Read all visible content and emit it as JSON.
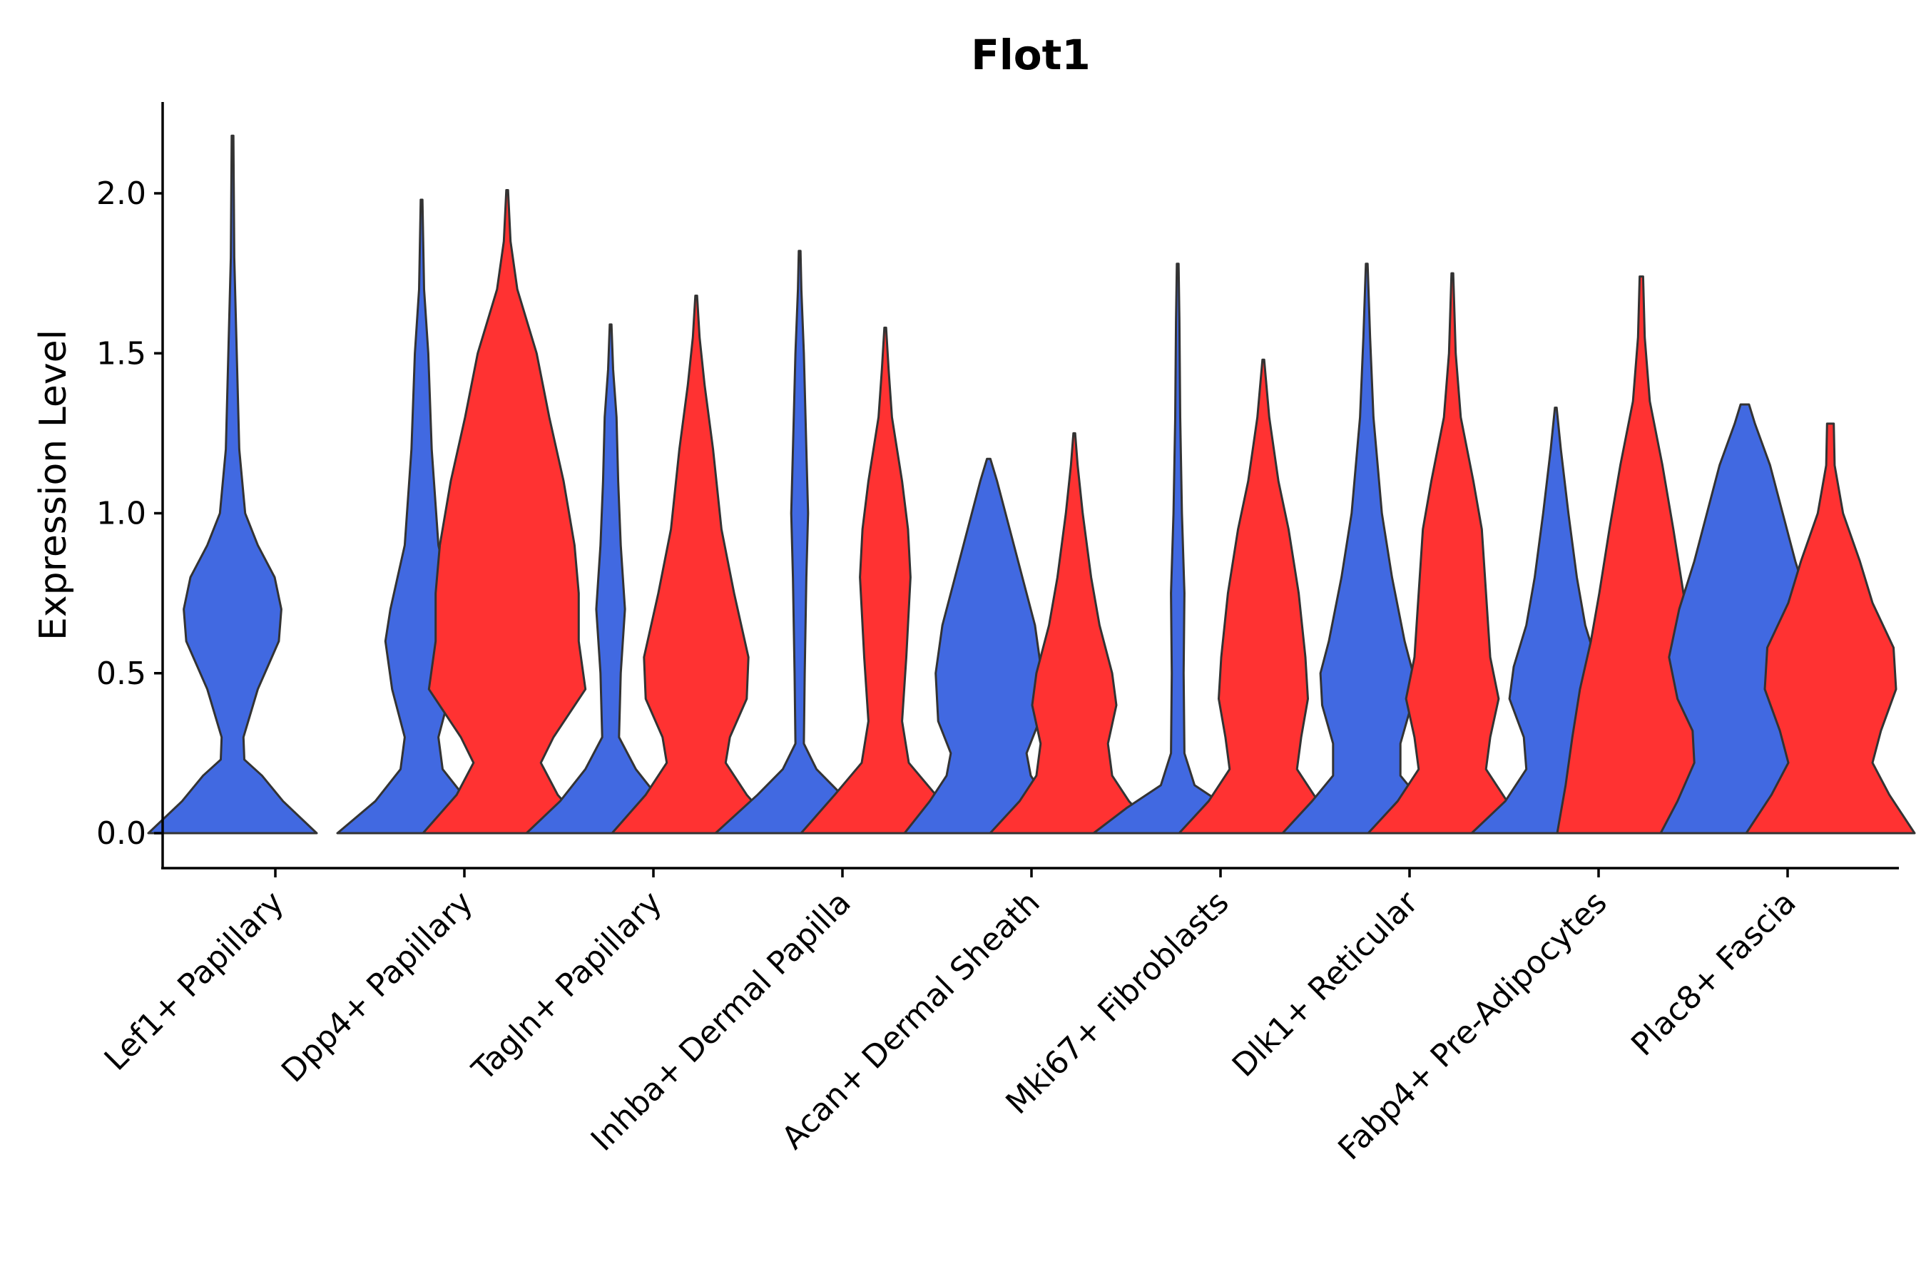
{
  "chart_data": {
    "type": "violin",
    "title": "Flot1",
    "xlabel": "",
    "ylabel": "Expression Level",
    "ylim": [
      -0.11,
      2.3
    ],
    "yticks": [
      0.0,
      0.5,
      1.0,
      1.5,
      2.0
    ],
    "ytick_labels": [
      "0.0",
      "0.5",
      "1.0",
      "1.5",
      "2.0"
    ],
    "grid": false,
    "legend": "none",
    "colors": {
      "group1": "#4169E1",
      "group2": "#FF3232",
      "outline": "#333333"
    },
    "categories": [
      "Lef1+ Papillary",
      "Dpp4+ Papillary",
      "Tagln+ Papillary",
      "Inhba+ Dermal Papilla",
      "Acan+ Dermal Sheath",
      "Mki67+ Fibroblasts",
      "Dlk1+ Reticular",
      "Fabp4+ Pre-Adipocytes",
      "Plac8+ Fascia"
    ],
    "violins": [
      {
        "category_index": 0,
        "group": "group1",
        "max": 2.18,
        "profile": [
          [
            0,
            1
          ],
          [
            0.1,
            0.6
          ],
          [
            0.18,
            0.35
          ],
          [
            0.23,
            0.14
          ],
          [
            0.3,
            0.13
          ],
          [
            0.45,
            0.3
          ],
          [
            0.6,
            0.55
          ],
          [
            0.7,
            0.58
          ],
          [
            0.8,
            0.5
          ],
          [
            0.9,
            0.3
          ],
          [
            1.0,
            0.15
          ],
          [
            1.2,
            0.08
          ],
          [
            1.5,
            0.05
          ],
          [
            1.8,
            0.02
          ],
          [
            2.18,
            0.01
          ]
        ]
      },
      {
        "category_index": 1,
        "group": "group1",
        "max": 1.98,
        "profile": [
          [
            0,
            1
          ],
          [
            0.1,
            0.55
          ],
          [
            0.2,
            0.25
          ],
          [
            0.3,
            0.2
          ],
          [
            0.45,
            0.35
          ],
          [
            0.6,
            0.43
          ],
          [
            0.7,
            0.37
          ],
          [
            0.9,
            0.2
          ],
          [
            1.2,
            0.12
          ],
          [
            1.5,
            0.08
          ],
          [
            1.7,
            0.03
          ],
          [
            1.98,
            0.01
          ]
        ]
      },
      {
        "category_index": 1,
        "group": "group2",
        "max": 2.01,
        "profile": [
          [
            0,
            1
          ],
          [
            0.12,
            0.6
          ],
          [
            0.22,
            0.4
          ],
          [
            0.3,
            0.55
          ],
          [
            0.45,
            0.93
          ],
          [
            0.6,
            0.85
          ],
          [
            0.75,
            0.85
          ],
          [
            0.9,
            0.8
          ],
          [
            1.1,
            0.67
          ],
          [
            1.3,
            0.5
          ],
          [
            1.5,
            0.35
          ],
          [
            1.7,
            0.12
          ],
          [
            1.85,
            0.04
          ],
          [
            2.01,
            0.01
          ]
        ]
      },
      {
        "category_index": 2,
        "group": "group1",
        "max": 1.59,
        "profile": [
          [
            0,
            1
          ],
          [
            0.1,
            0.6
          ],
          [
            0.2,
            0.3
          ],
          [
            0.3,
            0.1
          ],
          [
            0.5,
            0.12
          ],
          [
            0.7,
            0.17
          ],
          [
            0.9,
            0.12
          ],
          [
            1.1,
            0.09
          ],
          [
            1.3,
            0.07
          ],
          [
            1.45,
            0.03
          ],
          [
            1.59,
            0.01
          ]
        ]
      },
      {
        "category_index": 2,
        "group": "group2",
        "max": 1.68,
        "profile": [
          [
            0,
            1
          ],
          [
            0.12,
            0.6
          ],
          [
            0.22,
            0.35
          ],
          [
            0.3,
            0.4
          ],
          [
            0.42,
            0.6
          ],
          [
            0.55,
            0.62
          ],
          [
            0.75,
            0.45
          ],
          [
            0.95,
            0.3
          ],
          [
            1.2,
            0.2
          ],
          [
            1.4,
            0.1
          ],
          [
            1.55,
            0.04
          ],
          [
            1.68,
            0.01
          ]
        ]
      },
      {
        "category_index": 3,
        "group": "group1",
        "max": 1.82,
        "profile": [
          [
            0,
            1
          ],
          [
            0.12,
            0.5
          ],
          [
            0.2,
            0.2
          ],
          [
            0.28,
            0.05
          ],
          [
            0.5,
            0.06
          ],
          [
            0.8,
            0.08
          ],
          [
            1.0,
            0.1
          ],
          [
            1.2,
            0.08
          ],
          [
            1.5,
            0.05
          ],
          [
            1.7,
            0.02
          ],
          [
            1.82,
            0.01
          ]
        ]
      },
      {
        "category_index": 3,
        "group": "group2",
        "max": 1.58,
        "profile": [
          [
            0,
            1
          ],
          [
            0.12,
            0.6
          ],
          [
            0.22,
            0.28
          ],
          [
            0.35,
            0.2
          ],
          [
            0.55,
            0.25
          ],
          [
            0.8,
            0.3
          ],
          [
            0.95,
            0.27
          ],
          [
            1.1,
            0.2
          ],
          [
            1.3,
            0.08
          ],
          [
            1.45,
            0.04
          ],
          [
            1.58,
            0.01
          ]
        ]
      },
      {
        "category_index": 4,
        "group": "group1",
        "max": 1.17,
        "profile": [
          [
            0,
            1
          ],
          [
            0.1,
            0.7
          ],
          [
            0.18,
            0.5
          ],
          [
            0.25,
            0.45
          ],
          [
            0.35,
            0.6
          ],
          [
            0.5,
            0.63
          ],
          [
            0.65,
            0.55
          ],
          [
            0.8,
            0.4
          ],
          [
            0.95,
            0.25
          ],
          [
            1.1,
            0.1
          ],
          [
            1.17,
            0.02
          ]
        ]
      },
      {
        "category_index": 4,
        "group": "group2",
        "max": 1.25,
        "profile": [
          [
            0,
            1
          ],
          [
            0.1,
            0.65
          ],
          [
            0.18,
            0.45
          ],
          [
            0.28,
            0.4
          ],
          [
            0.4,
            0.5
          ],
          [
            0.5,
            0.45
          ],
          [
            0.65,
            0.3
          ],
          [
            0.8,
            0.2
          ],
          [
            1.0,
            0.1
          ],
          [
            1.15,
            0.04
          ],
          [
            1.25,
            0.01
          ]
        ]
      },
      {
        "category_index": 5,
        "group": "group1",
        "max": 1.78,
        "profile": [
          [
            0,
            1
          ],
          [
            0.08,
            0.6
          ],
          [
            0.15,
            0.2
          ],
          [
            0.25,
            0.08
          ],
          [
            0.5,
            0.07
          ],
          [
            0.75,
            0.08
          ],
          [
            1.0,
            0.05
          ],
          [
            1.3,
            0.03
          ],
          [
            1.6,
            0.02
          ],
          [
            1.78,
            0.01
          ]
        ]
      },
      {
        "category_index": 5,
        "group": "group2",
        "max": 1.48,
        "profile": [
          [
            0,
            1
          ],
          [
            0.1,
            0.65
          ],
          [
            0.2,
            0.4
          ],
          [
            0.3,
            0.45
          ],
          [
            0.42,
            0.53
          ],
          [
            0.55,
            0.5
          ],
          [
            0.75,
            0.42
          ],
          [
            0.95,
            0.3
          ],
          [
            1.1,
            0.18
          ],
          [
            1.3,
            0.07
          ],
          [
            1.48,
            0.01
          ]
        ]
      },
      {
        "category_index": 6,
        "group": "group1",
        "max": 1.78,
        "profile": [
          [
            0,
            1
          ],
          [
            0.1,
            0.65
          ],
          [
            0.18,
            0.4
          ],
          [
            0.28,
            0.4
          ],
          [
            0.4,
            0.53
          ],
          [
            0.5,
            0.55
          ],
          [
            0.6,
            0.45
          ],
          [
            0.8,
            0.3
          ],
          [
            1.0,
            0.18
          ],
          [
            1.3,
            0.08
          ],
          [
            1.55,
            0.04
          ],
          [
            1.78,
            0.01
          ]
        ]
      },
      {
        "category_index": 6,
        "group": "group2",
        "max": 1.75,
        "profile": [
          [
            0,
            1
          ],
          [
            0.1,
            0.65
          ],
          [
            0.2,
            0.4
          ],
          [
            0.3,
            0.45
          ],
          [
            0.42,
            0.55
          ],
          [
            0.55,
            0.45
          ],
          [
            0.75,
            0.4
          ],
          [
            0.95,
            0.35
          ],
          [
            1.1,
            0.25
          ],
          [
            1.3,
            0.1
          ],
          [
            1.5,
            0.04
          ],
          [
            1.75,
            0.01
          ]
        ]
      },
      {
        "category_index": 7,
        "group": "group1",
        "max": 1.33,
        "profile": [
          [
            0,
            1
          ],
          [
            0.1,
            0.6
          ],
          [
            0.2,
            0.35
          ],
          [
            0.3,
            0.38
          ],
          [
            0.42,
            0.55
          ],
          [
            0.52,
            0.5
          ],
          [
            0.65,
            0.35
          ],
          [
            0.8,
            0.25
          ],
          [
            1.0,
            0.15
          ],
          [
            1.2,
            0.06
          ],
          [
            1.33,
            0.01
          ]
        ]
      },
      {
        "category_index": 7,
        "group": "group2",
        "max": 1.74,
        "profile": [
          [
            0,
            1
          ],
          [
            0.15,
            0.9
          ],
          [
            0.3,
            0.82
          ],
          [
            0.45,
            0.73
          ],
          [
            0.6,
            0.6
          ],
          [
            0.75,
            0.5
          ],
          [
            0.95,
            0.38
          ],
          [
            1.15,
            0.25
          ],
          [
            1.35,
            0.1
          ],
          [
            1.55,
            0.04
          ],
          [
            1.74,
            0.02
          ]
        ]
      },
      {
        "category_index": 8,
        "group": "group1",
        "max": 1.34,
        "profile": [
          [
            0,
            1
          ],
          [
            0.1,
            0.8
          ],
          [
            0.22,
            0.6
          ],
          [
            0.32,
            0.62
          ],
          [
            0.42,
            0.8
          ],
          [
            0.55,
            0.9
          ],
          [
            0.7,
            0.78
          ],
          [
            0.85,
            0.6
          ],
          [
            1.0,
            0.45
          ],
          [
            1.15,
            0.3
          ],
          [
            1.28,
            0.12
          ],
          [
            1.34,
            0.05
          ]
        ]
      },
      {
        "category_index": 8,
        "group": "group2",
        "max": 1.28,
        "profile": [
          [
            0,
            1
          ],
          [
            0.12,
            0.7
          ],
          [
            0.22,
            0.5
          ],
          [
            0.32,
            0.6
          ],
          [
            0.45,
            0.78
          ],
          [
            0.58,
            0.75
          ],
          [
            0.72,
            0.5
          ],
          [
            0.85,
            0.35
          ],
          [
            1.0,
            0.15
          ],
          [
            1.15,
            0.05
          ],
          [
            1.28,
            0.04
          ]
        ]
      }
    ]
  }
}
